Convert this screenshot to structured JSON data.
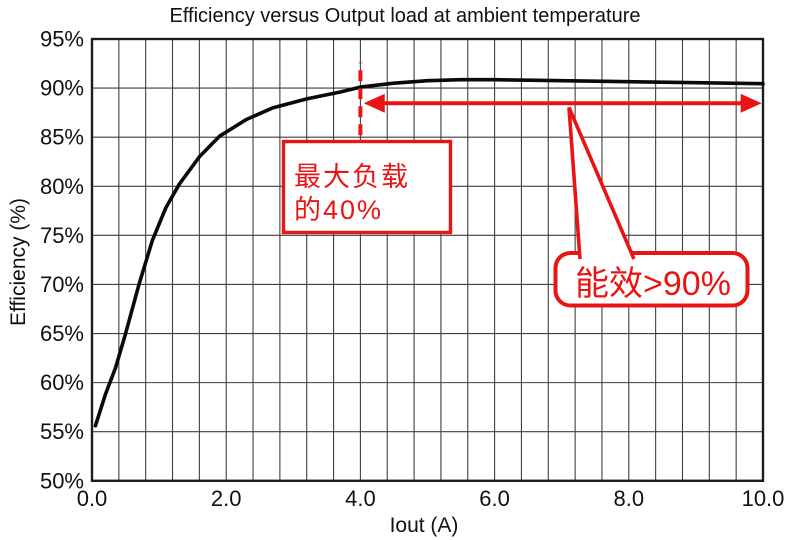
{
  "chart_data": {
    "type": "line",
    "title": "Efficiency versus Output load at ambient temperature",
    "xlabel": "Iout (A)",
    "ylabel": "Efficiency (%)",
    "xlim": [
      0,
      10
    ],
    "ylim": [
      50,
      95
    ],
    "x_tick_values": [
      0,
      2,
      4,
      6,
      8,
      10
    ],
    "x_tick_labels": [
      "0.0",
      "2.0",
      "4.0",
      "6.0",
      "8.0",
      "10.0"
    ],
    "y_tick_values": [
      95,
      90,
      85,
      80,
      75,
      70,
      65,
      60,
      55,
      50
    ],
    "y_tick_labels": [
      "95%",
      "90%",
      "85%",
      "80%",
      "75%",
      "70%",
      "65%",
      "60%",
      "55%",
      "50%"
    ],
    "x_minor_grid_step": 0.4,
    "y_grid_step": 5,
    "grid": true,
    "legend": "none",
    "series": [
      {
        "name": "Efficiency",
        "x": [
          0.05,
          0.2,
          0.35,
          0.5,
          0.7,
          0.9,
          1.1,
          1.3,
          1.6,
          1.9,
          2.3,
          2.7,
          3.2,
          3.7,
          4.0,
          4.5,
          5.0,
          5.5,
          6.0,
          6.5,
          7.0,
          7.5,
          8.0,
          8.5,
          9.0,
          9.5,
          10.0
        ],
        "y": [
          55.6,
          58.8,
          61.5,
          65.0,
          70.0,
          74.5,
          77.8,
          80.2,
          83.0,
          85.1,
          86.8,
          88.0,
          88.9,
          89.6,
          90.1,
          90.5,
          90.75,
          90.85,
          90.85,
          90.8,
          90.75,
          90.7,
          90.65,
          90.6,
          90.55,
          90.5,
          90.45
        ]
      }
    ],
    "annotations": {
      "dashed_line": {
        "x": 4.0,
        "y_from": 85.2,
        "y_to": 92.6
      },
      "double_arrow": {
        "x_from": 4.05,
        "x_to": 9.98,
        "y": 88.45
      },
      "load_label": {
        "line1": "最大负载",
        "line2": "的40%"
      },
      "callout_label": "能效>90%"
    }
  },
  "colors": {
    "annotation_red": "#e91515",
    "curve_black": "#0a0a0a",
    "grid_gray": "#3f3f3f",
    "background": "#ffffff"
  }
}
